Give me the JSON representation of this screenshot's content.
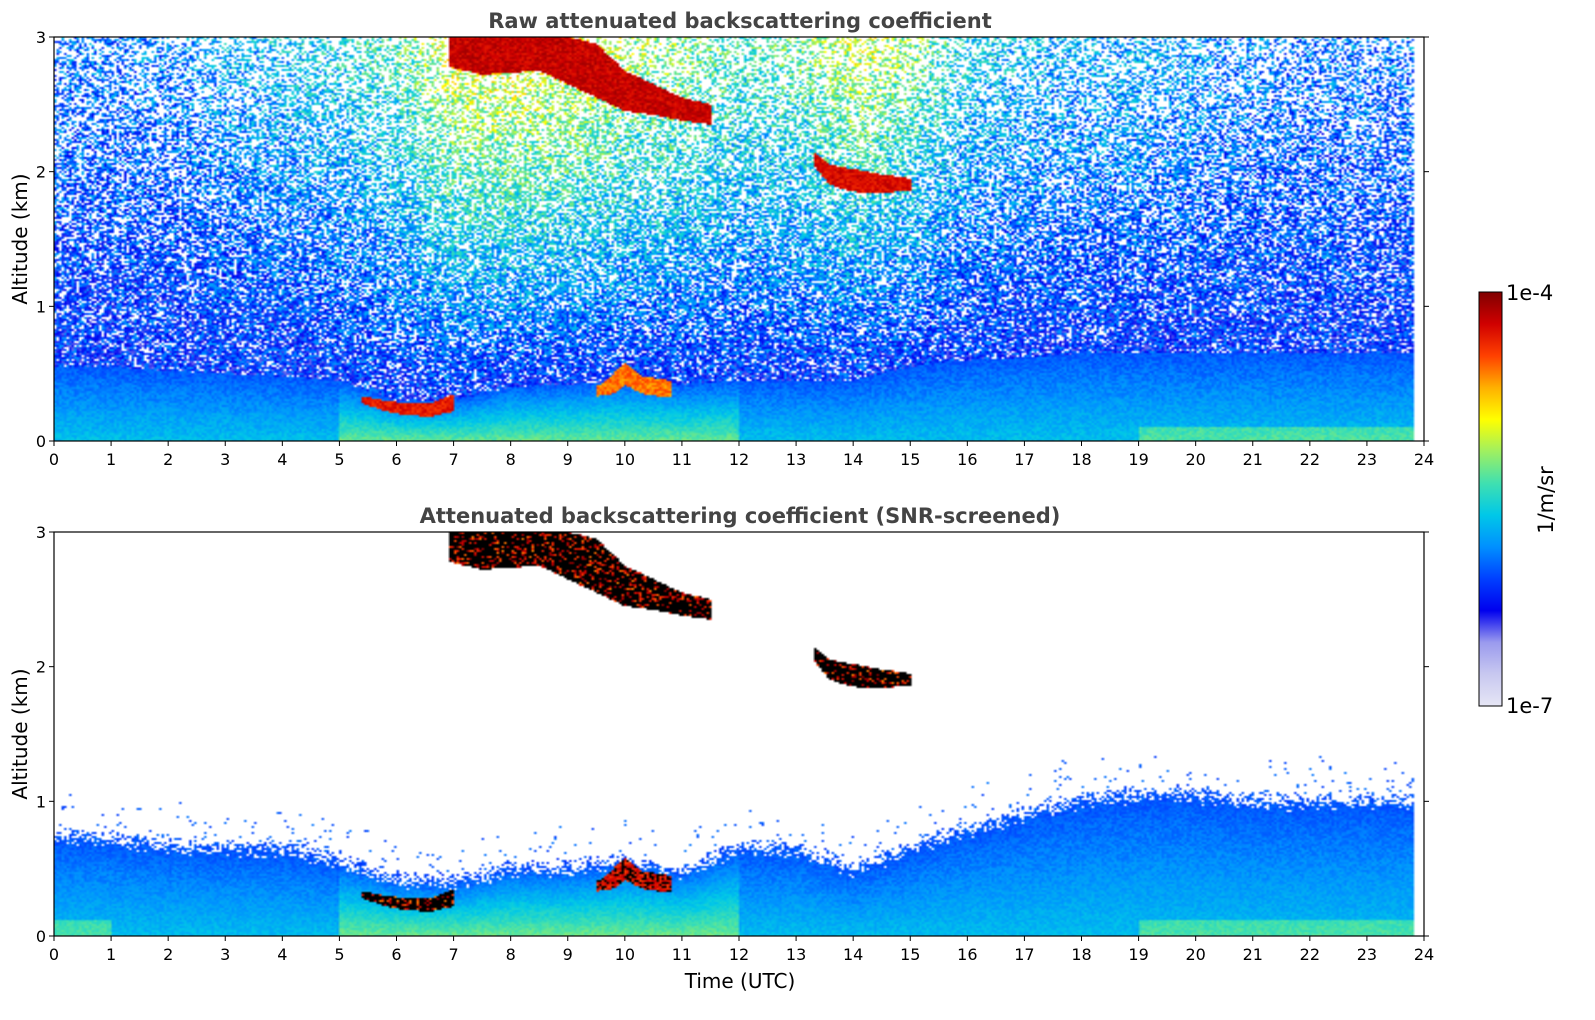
{
  "chart_data": [
    {
      "type": "heatmap",
      "title": "Raw attenuated backscattering coefficient",
      "xlabel": "",
      "ylabel": "Altitude (km)",
      "xlim": [
        0,
        24
      ],
      "ylim": [
        0,
        3
      ],
      "x_ticks": [
        "0",
        "1",
        "2",
        "3",
        "4",
        "5",
        "6",
        "7",
        "8",
        "9",
        "10",
        "11",
        "12",
        "13",
        "14",
        "15",
        "16",
        "17",
        "18",
        "19",
        "20",
        "21",
        "22",
        "23",
        "24"
      ],
      "y_ticks": [
        "0",
        "1",
        "2",
        "3"
      ],
      "x_ticks_val": [
        0,
        1,
        2,
        3,
        4,
        5,
        6,
        7,
        8,
        9,
        10,
        11,
        12,
        13,
        14,
        15,
        16,
        17,
        18,
        19,
        20,
        21,
        22,
        23,
        24
      ],
      "y_ticks_val": [
        0,
        1,
        2,
        3
      ],
      "noise_top_intensity": [
        0.35,
        0.35,
        0.36,
        0.4,
        0.42,
        0.45,
        0.5,
        0.62,
        0.65,
        0.62,
        0.58,
        0.55,
        0.5,
        0.52,
        0.6,
        0.55,
        0.45,
        0.42,
        0.4,
        0.4,
        0.38,
        0.36,
        0.35,
        0.35,
        0.35
      ],
      "boundary_layer_top_km": [
        0.55,
        0.55,
        0.52,
        0.5,
        0.48,
        0.45,
        0.3,
        0.3,
        0.4,
        0.42,
        0.45,
        0.42,
        0.45,
        0.45,
        0.45,
        0.55,
        0.6,
        0.62,
        0.65,
        0.65,
        0.65,
        0.65,
        0.65,
        0.65,
        0.65
      ],
      "features": [
        {
          "name": "high-cloud",
          "x": [
            6.9,
            7.5,
            8.5,
            9.0,
            9.5,
            10.0,
            10.5,
            11.0,
            11.5
          ],
          "top": [
            3.0,
            3.0,
            3.0,
            3.0,
            2.95,
            2.75,
            2.65,
            2.55,
            2.5
          ],
          "bottom": [
            2.78,
            2.72,
            2.75,
            2.65,
            2.55,
            2.45,
            2.42,
            2.38,
            2.35
          ],
          "level": 0.97
        },
        {
          "name": "mid-cloud",
          "x": [
            13.3,
            13.6,
            14.0,
            14.5,
            15.0
          ],
          "top": [
            2.15,
            2.05,
            2.02,
            1.98,
            1.95
          ],
          "bottom": [
            2.05,
            1.9,
            1.85,
            1.84,
            1.86
          ],
          "level": 0.95
        },
        {
          "name": "aerosol-layer-morning",
          "x": [
            5.4,
            5.8,
            6.2,
            6.6,
            7.0
          ],
          "top": [
            0.33,
            0.3,
            0.28,
            0.28,
            0.35
          ],
          "bottom": [
            0.28,
            0.22,
            0.19,
            0.18,
            0.22
          ],
          "level": 0.93
        },
        {
          "name": "aerosol-layer-10h",
          "x": [
            9.5,
            9.8,
            10.0,
            10.3,
            10.8
          ],
          "top": [
            0.4,
            0.5,
            0.58,
            0.48,
            0.45
          ],
          "bottom": [
            0.33,
            0.35,
            0.42,
            0.35,
            0.32
          ],
          "level": 0.85
        }
      ]
    },
    {
      "type": "heatmap",
      "title": "Attenuated backscattering coefficient (SNR-screened)",
      "xlabel": "Time (UTC)",
      "ylabel": "Altitude (km)",
      "xlim": [
        0,
        24
      ],
      "ylim": [
        0,
        3
      ],
      "x_ticks": [
        "0",
        "1",
        "2",
        "3",
        "4",
        "5",
        "6",
        "7",
        "8",
        "9",
        "10",
        "11",
        "12",
        "13",
        "14",
        "15",
        "16",
        "17",
        "18",
        "19",
        "20",
        "21",
        "22",
        "23",
        "24"
      ],
      "y_ticks": [
        "0",
        "1",
        "2",
        "3"
      ],
      "x_ticks_val": [
        0,
        1,
        2,
        3,
        4,
        5,
        6,
        7,
        8,
        9,
        10,
        11,
        12,
        13,
        14,
        15,
        16,
        17,
        18,
        19,
        20,
        21,
        22,
        23,
        24
      ],
      "y_ticks_val": [
        0,
        1,
        2,
        3
      ],
      "boundary_layer_top_km": [
        0.75,
        0.72,
        0.68,
        0.65,
        0.65,
        0.55,
        0.42,
        0.4,
        0.5,
        0.5,
        0.55,
        0.48,
        0.65,
        0.65,
        0.5,
        0.65,
        0.8,
        0.9,
        1.0,
        1.05,
        1.05,
        1.0,
        1.0,
        1.0,
        1.0
      ],
      "features": [
        {
          "name": "high-cloud",
          "x": [
            6.9,
            7.5,
            8.5,
            9.0,
            9.5,
            10.0,
            10.5,
            11.0,
            11.5
          ],
          "top": [
            3.0,
            3.0,
            3.0,
            3.0,
            2.95,
            2.75,
            2.65,
            2.55,
            2.5
          ],
          "bottom": [
            2.78,
            2.72,
            2.75,
            2.65,
            2.55,
            2.45,
            2.42,
            2.38,
            2.35
          ],
          "level": 1.0
        },
        {
          "name": "mid-cloud",
          "x": [
            13.3,
            13.6,
            14.0,
            14.5,
            15.0
          ],
          "top": [
            2.15,
            2.05,
            2.02,
            1.98,
            1.95
          ],
          "bottom": [
            2.05,
            1.9,
            1.85,
            1.84,
            1.86
          ],
          "level": 1.0
        },
        {
          "name": "aerosol-layer-morning",
          "x": [
            5.4,
            5.8,
            6.2,
            6.6,
            7.0
          ],
          "top": [
            0.33,
            0.3,
            0.28,
            0.28,
            0.35
          ],
          "bottom": [
            0.28,
            0.22,
            0.19,
            0.18,
            0.22
          ],
          "level": 1.0
        },
        {
          "name": "aerosol-layer-10h",
          "x": [
            9.5,
            9.8,
            10.0,
            10.3,
            10.8
          ],
          "top": [
            0.4,
            0.5,
            0.58,
            0.48,
            0.45
          ],
          "bottom": [
            0.33,
            0.35,
            0.42,
            0.35,
            0.32
          ],
          "level": 0.9
        }
      ]
    }
  ],
  "colorbar": {
    "label": "1/m/sr",
    "max_label": "1e-4",
    "min_label": "1e-7",
    "colors": [
      "#e6e6f5",
      "#c8c8f0",
      "#9a9aee",
      "#0000ee",
      "#0040ff",
      "#0090ff",
      "#00c8e8",
      "#40e0b0",
      "#a0f060",
      "#ffff00",
      "#ffb000",
      "#ff4000",
      "#d00000",
      "#800000"
    ]
  }
}
